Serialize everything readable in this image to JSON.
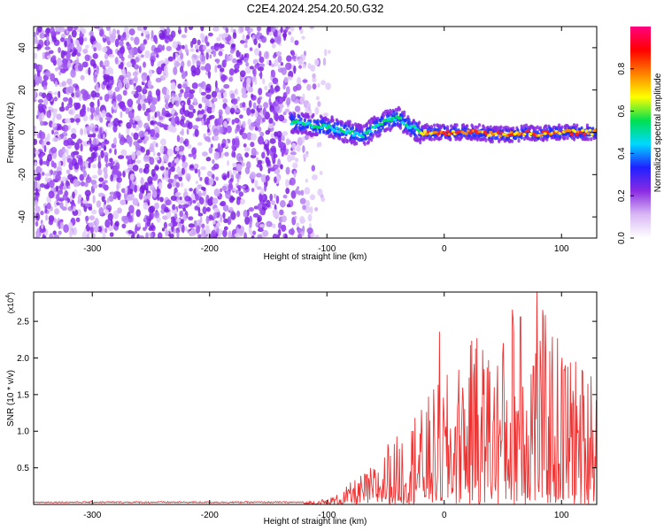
{
  "title": "C2E4.2024.254.20.50.G32",
  "chart_data": [
    {
      "type": "heatmap",
      "xlabel": "Height of straight line (km)",
      "ylabel": "Frequency (Hz)",
      "xlim": [
        -350,
        130
      ],
      "ylim": [
        -50,
        50
      ],
      "xticks": [
        -300,
        -200,
        -100,
        0,
        100
      ],
      "yticks": [
        -40,
        -20,
        0,
        20,
        40
      ],
      "noise_region_x": [
        -350,
        -100
      ],
      "signal_ridge": {
        "x": [
          -130,
          -120,
          -110,
          -100,
          -90,
          -80,
          -70,
          -60,
          -50,
          -40,
          -30,
          -20,
          -10,
          0,
          10,
          20,
          30,
          40,
          50,
          60,
          70,
          80,
          90,
          100,
          110,
          120,
          130
        ],
        "freq_hz": [
          5,
          4,
          3,
          3,
          1,
          0,
          -2,
          2,
          5,
          7,
          3,
          0,
          0,
          0,
          0,
          0,
          0,
          -1,
          -1,
          -1,
          0,
          -1,
          0,
          0,
          0,
          0,
          0
        ]
      },
      "colorbar": {
        "label": "Normalized spectral amplitude",
        "range": [
          0,
          1
        ],
        "ticks": [
          "0.0",
          "0.2",
          "0.4",
          "0.6",
          "0.8"
        ],
        "colors": [
          "#ffffff",
          "#d9b8f5",
          "#8a2be2",
          "#2020ff",
          "#00d8ff",
          "#00e050",
          "#ffff00",
          "#ff8000",
          "#ff0000",
          "#ff0080"
        ]
      }
    },
    {
      "type": "line",
      "xlabel": "Height of straight line (km)",
      "ylabel": "SNR (10 * v/v)",
      "scale_label": "(x10",
      "scale_exponent": "4",
      "xlim": [
        -350,
        130
      ],
      "ylim": [
        0,
        2.9
      ],
      "xticks": [
        -300,
        -200,
        -100,
        0,
        100
      ],
      "yticks": [
        "0.5",
        "1.0",
        "1.5",
        "2.0",
        "2.5"
      ],
      "line_color": "#ee3333",
      "envelope": {
        "x": [
          -350,
          -120,
          -100,
          -90,
          -80,
          -70,
          -60,
          -50,
          -40,
          -30,
          -20,
          -10,
          0,
          10,
          20,
          30,
          40,
          50,
          60,
          70,
          80,
          90,
          100,
          110,
          120,
          130
        ],
        "max": [
          0.03,
          0.04,
          0.08,
          0.15,
          0.3,
          0.42,
          0.55,
          0.75,
          0.95,
          1.15,
          1.3,
          1.6,
          1.75,
          1.9,
          2.2,
          2.35,
          2.15,
          2.3,
          2.8,
          2.5,
          2.88,
          2.45,
          2.3,
          2.1,
          1.9,
          1.7
        ]
      },
      "peaks": [
        [
          -48,
          0.82
        ],
        [
          -25,
          1.18
        ],
        [
          -4,
          2.36
        ],
        [
          15,
          1.28
        ],
        [
          25,
          1.75
        ],
        [
          28,
          2.27
        ],
        [
          38,
          1.97
        ],
        [
          45,
          1.41
        ],
        [
          50,
          2.05
        ],
        [
          58,
          2.66
        ],
        [
          65,
          2.56
        ],
        [
          76,
          1.89
        ],
        [
          79,
          2.9
        ],
        [
          92,
          2.29
        ],
        [
          100,
          1.86
        ],
        [
          110,
          1.55
        ],
        [
          118,
          1.81
        ],
        [
          125,
          1.75
        ]
      ]
    }
  ]
}
